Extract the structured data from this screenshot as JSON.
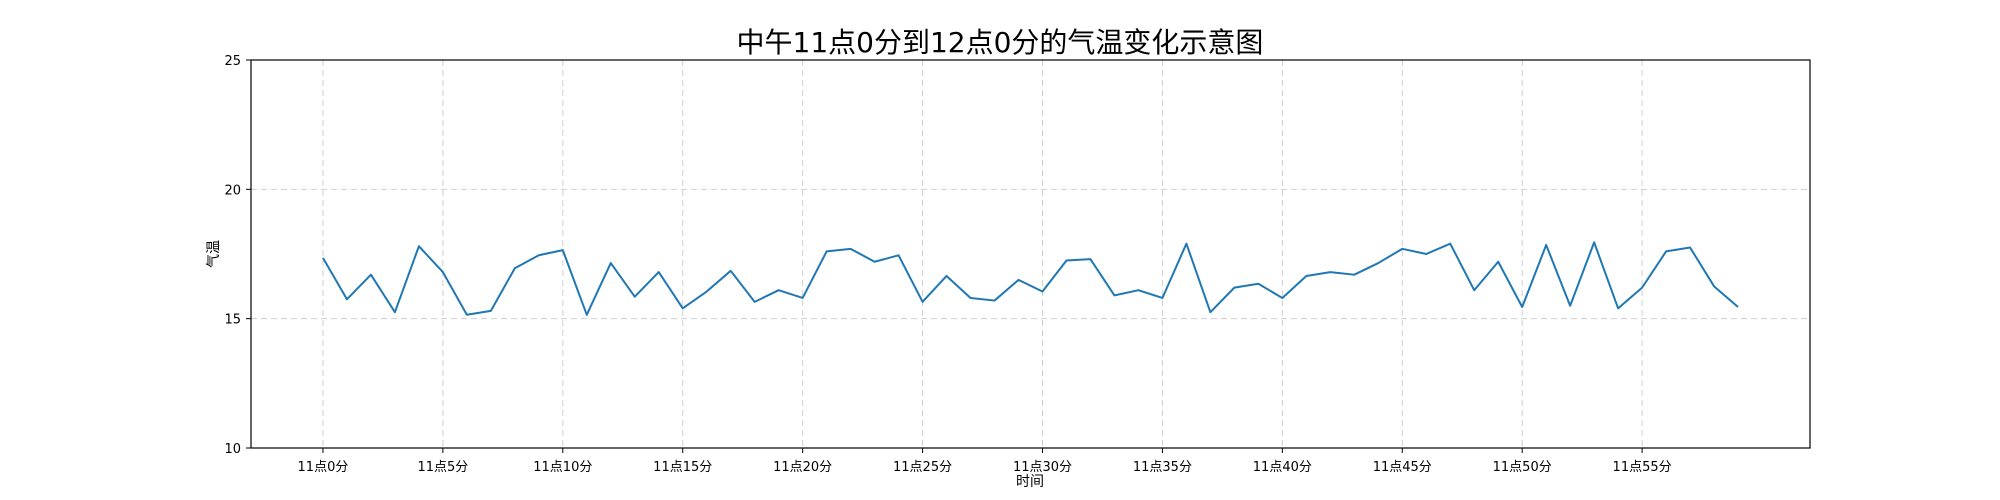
{
  "chart_data": {
    "type": "line",
    "title": "中午11点0分到12点0分的气温变化示意图",
    "xlabel": "时间",
    "ylabel": "气温",
    "x": [
      0,
      1,
      2,
      3,
      4,
      5,
      6,
      7,
      8,
      9,
      10,
      11,
      12,
      13,
      14,
      15,
      16,
      17,
      18,
      19,
      20,
      21,
      22,
      23,
      24,
      25,
      26,
      27,
      28,
      29,
      30,
      31,
      32,
      33,
      34,
      35,
      36,
      37,
      38,
      39,
      40,
      41,
      42,
      43,
      44,
      45,
      46,
      47,
      48,
      49,
      50,
      51,
      52,
      53,
      54,
      55,
      56,
      57,
      58,
      59
    ],
    "xticks": [
      0,
      5,
      10,
      15,
      20,
      25,
      30,
      35,
      40,
      45,
      50,
      55
    ],
    "xtick_labels": [
      "11点0分",
      "11点5分",
      "11点10分",
      "11点15分",
      "11点20分",
      "11点25分",
      "11点30分",
      "11点35分",
      "11点40分",
      "11点45分",
      "11点50分",
      "11点55分"
    ],
    "xlim": [
      -3,
      62
    ],
    "ylim": [
      10,
      25
    ],
    "yticks": [
      10,
      15,
      20,
      25
    ],
    "grid": true,
    "series": [
      {
        "color": "#1f77b4",
        "values": [
          17.35,
          15.75,
          16.7,
          15.25,
          17.8,
          16.8,
          15.15,
          15.3,
          16.95,
          17.45,
          17.65,
          15.15,
          17.15,
          15.85,
          16.8,
          15.4,
          16.05,
          16.85,
          15.65,
          16.1,
          15.8,
          17.6,
          17.7,
          17.2,
          17.45,
          15.65,
          16.65,
          15.8,
          15.7,
          16.5,
          16.05,
          17.25,
          17.3,
          15.9,
          16.1,
          15.8,
          17.9,
          15.25,
          16.2,
          16.35,
          15.8,
          16.65,
          16.8,
          16.7,
          17.15,
          17.7,
          17.5,
          17.9,
          16.1,
          17.2,
          15.45,
          17.85,
          15.5,
          17.95,
          15.4,
          16.2,
          17.6,
          17.75,
          16.25,
          15.45
        ]
      }
    ]
  }
}
